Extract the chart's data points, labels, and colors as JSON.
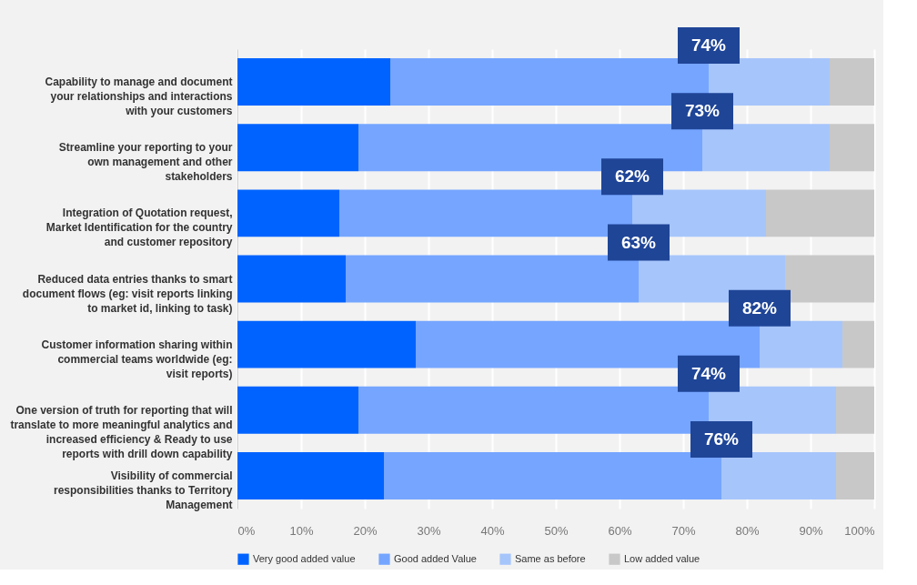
{
  "chart_data": {
    "type": "bar",
    "orientation": "horizontal",
    "stacked": true,
    "categories": [
      "Capability to manage and document\nyour relationships and interactions\nwith your customers",
      "Streamline your reporting to your\nown management and other\nstakeholders",
      "Integration of Quotation request,\nMarket Identification for the country\nand customer repository",
      "Reduced data entries thanks to smart\ndocument flows (eg: visit reports linking\nto market id, linking to task)",
      "Customer information sharing within\ncommercial teams worldwide (eg:\nvisit reports)",
      "One version of truth for reporting that will\ntranslate to more meaningful analytics and\nincreased efficiency  & Ready to use\nreports with drill down capability",
      "Visibility of commercial\nresponsibilities thanks to Territory\nManagement"
    ],
    "series": [
      {
        "name": "Very good added value",
        "color": "#0063ff",
        "values": [
          24,
          19,
          16,
          17,
          28,
          19,
          23
        ]
      },
      {
        "name": "Good added Value",
        "color": "#75a5ff",
        "values": [
          50,
          54,
          46,
          46,
          54,
          55,
          53
        ]
      },
      {
        "name": "Same as before",
        "color": "#a6c5fb",
        "values": [
          19,
          20,
          21,
          23,
          13,
          20,
          18
        ]
      },
      {
        "name": "Low added value",
        "color": "#c8c8c8",
        "values": [
          7,
          7,
          17,
          14,
          5,
          6,
          6
        ]
      }
    ],
    "xlim": [
      0,
      100
    ],
    "xticks": [
      {
        "value": 0,
        "label": "0%"
      },
      {
        "value": 10,
        "label": "10%"
      },
      {
        "value": 20,
        "label": "20%"
      },
      {
        "value": 30,
        "label": "30%"
      },
      {
        "value": 40,
        "label": "40%"
      },
      {
        "value": 50,
        "label": "50%"
      },
      {
        "value": 60,
        "label": "60%"
      },
      {
        "value": 70,
        "label": "70%"
      },
      {
        "value": 80,
        "label": "80%"
      },
      {
        "value": 90,
        "label": "90%"
      },
      {
        "value": 100,
        "label": "100%"
      }
    ],
    "grid": "x",
    "legend": "bottom",
    "annotations": [
      {
        "text": "74%",
        "x": 74,
        "y": "Capability to manage and document\nyour relationships and interactions\nwith your customers"
      },
      {
        "text": "73%",
        "x": 73,
        "y": "Streamline your reporting to your\nown management and other\nstakeholders"
      },
      {
        "text": "62%",
        "x": 62,
        "y": "Integration of Quotation request,\nMarket Identification for the country\nand customer repository"
      },
      {
        "text": "63%",
        "x": 63,
        "y": "Reduced data entries thanks to smart\ndocument flows (eg: visit reports linking\nto market id, linking to task)"
      },
      {
        "text": "82%",
        "x": 82,
        "y": "Customer information sharing within\ncommercial teams worldwide (eg:\nvisit reports)"
      },
      {
        "text": "74%",
        "x": 74,
        "y": "One version of truth for reporting that will\ntranslate to more meaningful analytics and\nincreased efficiency  & Ready to use\nreports with drill down capability"
      },
      {
        "text": "76%",
        "x": 76,
        "y": "Visibility of commercial\nresponsibilities thanks to Territory\nManagement"
      }
    ]
  }
}
